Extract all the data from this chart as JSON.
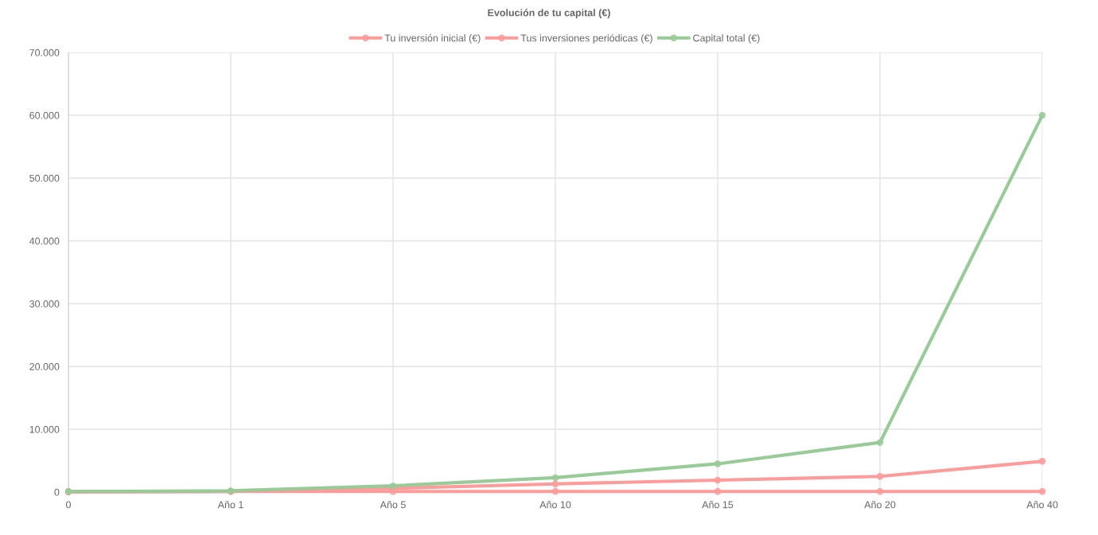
{
  "chart_data": {
    "type": "line",
    "title": "Evolución de tu capital (€)",
    "categories": [
      "0",
      "Año 1",
      "Año 5",
      "Año 10",
      "Año 15",
      "Año 20",
      "Año 40"
    ],
    "series": [
      {
        "name": "Tu inversión inicial (€)",
        "color": "#ff9b9b",
        "values": [
          100,
          100,
          100,
          100,
          100,
          100,
          100
        ]
      },
      {
        "name": "Tus inversiones periódicas (€)",
        "color": "#ff9b9b",
        "values": [
          0,
          100,
          600,
          1300,
          1900,
          2500,
          4900
        ]
      },
      {
        "name": "Capital total (€)",
        "color": "#98cb98",
        "values": [
          100,
          200,
          1000,
          2300,
          4500,
          7900,
          60000
        ]
      }
    ],
    "ylim": [
      0,
      70000
    ],
    "yticks": [
      {
        "value": 0,
        "label": "0"
      },
      {
        "value": 10000,
        "label": "10.000"
      },
      {
        "value": 20000,
        "label": "20.000"
      },
      {
        "value": 30000,
        "label": "30.000"
      },
      {
        "value": 40000,
        "label": "40.000"
      },
      {
        "value": 50000,
        "label": "50.000"
      },
      {
        "value": 60000,
        "label": "60.000"
      },
      {
        "value": 70000,
        "label": "70.000"
      }
    ],
    "grid": true,
    "legend": "top",
    "marker": "circle",
    "line_style": "solid"
  }
}
